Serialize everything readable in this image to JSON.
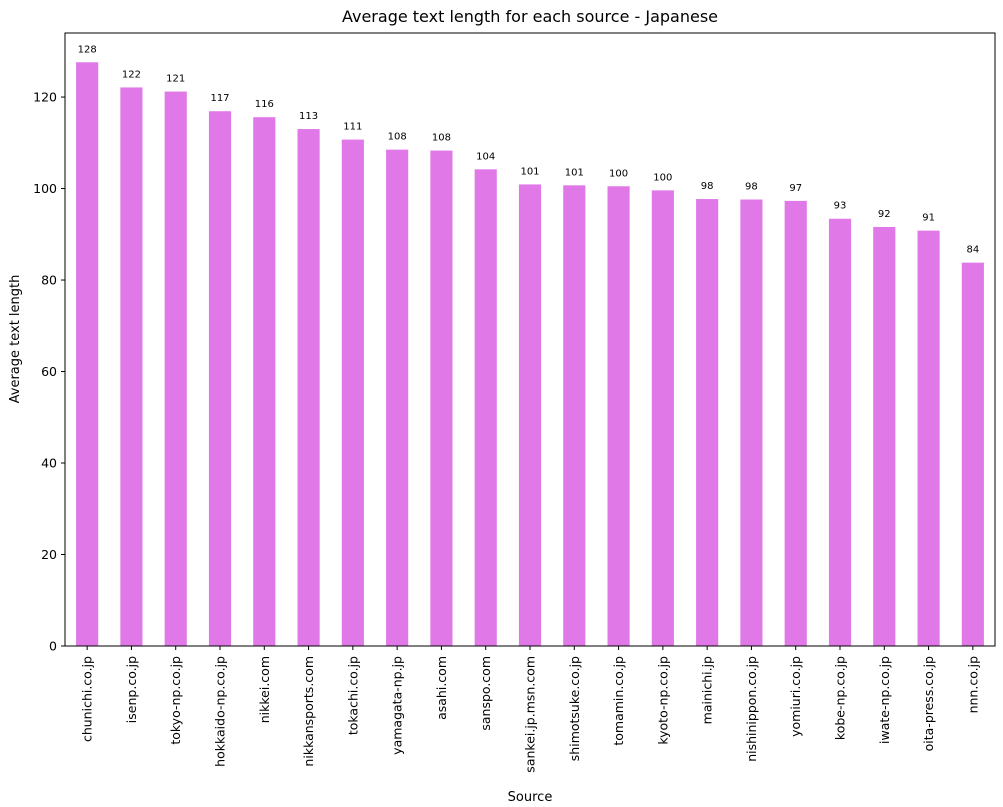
{
  "chart_data": {
    "type": "bar",
    "title": "Average text length for each source - Japanese",
    "xlabel": "Source",
    "ylabel": "Average text length",
    "categories": [
      "chunichi.co.jp",
      "isenp.co.jp",
      "tokyo-np.co.jp",
      "hokkaido-np.co.jp",
      "nikkei.com",
      "nikkansports.com",
      "tokachi.co.jp",
      "yamagata-np.jp",
      "asahi.com",
      "sanspo.com",
      "sankei.jp.msn.com",
      "shimotsuke.co.jp",
      "tomamin.co.jp",
      "kyoto-np.co.jp",
      "mainichi.jp",
      "nishinippon.co.jp",
      "yomiuri.co.jp",
      "kobe-np.co.jp",
      "iwate-np.co.jp",
      "oita-press.co.jp",
      "nnn.co.jp"
    ],
    "values": [
      127.6,
      122.1,
      121.2,
      116.9,
      115.6,
      113.0,
      110.7,
      108.5,
      108.3,
      104.2,
      100.9,
      100.7,
      100.5,
      99.6,
      97.7,
      97.6,
      97.3,
      93.4,
      91.6,
      90.8,
      83.8
    ],
    "data_labels": [
      "128",
      "122",
      "121",
      "117",
      "116",
      "113",
      "111",
      "108",
      "108",
      "104",
      "101",
      "101",
      "100",
      "100",
      "98",
      "98",
      "97",
      "93",
      "92",
      "91",
      "84"
    ],
    "yticks": [
      "0",
      "20",
      "40",
      "60",
      "80",
      "100",
      "120"
    ],
    "ylim": [
      0,
      134
    ],
    "bar_color": "#e078e8",
    "grid": false,
    "legend": "none"
  }
}
